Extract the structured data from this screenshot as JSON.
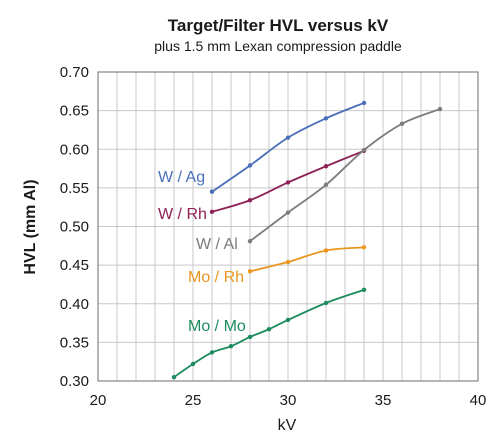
{
  "chart_data": {
    "type": "line",
    "title": "Target/Filter HVL versus kV",
    "subtitle": "plus 1.5 mm Lexan compression paddle",
    "xlabel": "kV",
    "ylabel": "HVL (mm Al)",
    "xlim": [
      20,
      40
    ],
    "ylim": [
      0.3,
      0.7
    ],
    "xticks": [
      "20",
      "25",
      "30",
      "35",
      "40"
    ],
    "yticks": [
      "0.30",
      "0.35",
      "0.40",
      "0.45",
      "0.50",
      "0.55",
      "0.60",
      "0.65",
      "0.70"
    ],
    "grid": true,
    "legend": "none",
    "series": [
      {
        "name": "W / Ag",
        "color": "#4a6fb8",
        "x": [
          26,
          28,
          30,
          32,
          34
        ],
        "y": [
          0.545,
          0.579,
          0.615,
          0.64,
          0.66
        ]
      },
      {
        "name": "W / Rh",
        "color": "#8e2156",
        "x": [
          26,
          28,
          30,
          32,
          34
        ],
        "y": [
          0.519,
          0.534,
          0.557,
          0.578,
          0.598
        ]
      },
      {
        "name": "W / Al",
        "color": "#7c7c7c",
        "x": [
          28,
          30,
          32,
          34,
          36,
          38
        ],
        "y": [
          0.481,
          0.518,
          0.554,
          0.599,
          0.633,
          0.652
        ]
      },
      {
        "name": "Mo / Rh",
        "color": "#ea961e",
        "x": [
          28,
          30,
          32,
          34
        ],
        "y": [
          0.442,
          0.454,
          0.469,
          0.473
        ]
      },
      {
        "name": "Mo / Mo",
        "color": "#1c8c5e",
        "x": [
          24,
          25,
          26,
          27,
          28,
          29,
          30,
          32,
          34
        ],
        "y": [
          0.305,
          0.322,
          0.337,
          0.345,
          0.357,
          0.367,
          0.379,
          0.401,
          0.418
        ]
      }
    ]
  }
}
